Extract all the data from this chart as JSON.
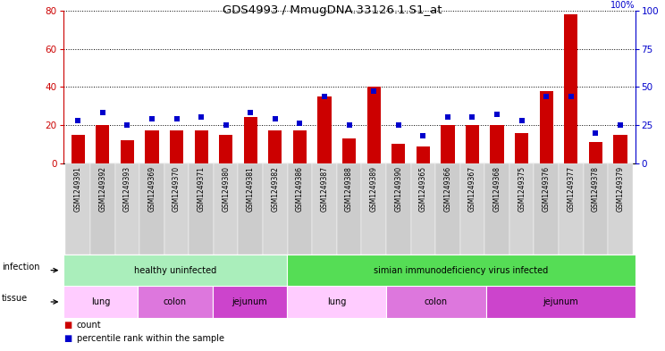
{
  "title": "GDS4993 / MmugDNA.33126.1.S1_at",
  "samples": [
    "GSM1249391",
    "GSM1249392",
    "GSM1249393",
    "GSM1249369",
    "GSM1249370",
    "GSM1249371",
    "GSM1249380",
    "GSM1249381",
    "GSM1249382",
    "GSM1249386",
    "GSM1249387",
    "GSM1249388",
    "GSM1249389",
    "GSM1249390",
    "GSM1249365",
    "GSM1249366",
    "GSM1249367",
    "GSM1249368",
    "GSM1249375",
    "GSM1249376",
    "GSM1249377",
    "GSM1249378",
    "GSM1249379"
  ],
  "counts": [
    15,
    20,
    12,
    17,
    17,
    17,
    15,
    24,
    17,
    17,
    35,
    13,
    40,
    10,
    9,
    20,
    20,
    20,
    16,
    38,
    78,
    11,
    15
  ],
  "percentiles": [
    28,
    33,
    25,
    29,
    29,
    30,
    25,
    33,
    29,
    26,
    44,
    25,
    47,
    25,
    18,
    30,
    30,
    32,
    28,
    44,
    44,
    20,
    25
  ],
  "red_color": "#cc0000",
  "blue_color": "#0000cc",
  "ylim_left": [
    0,
    80
  ],
  "ylim_right": [
    0,
    100
  ],
  "yticks_left": [
    0,
    20,
    40,
    60,
    80
  ],
  "yticks_right": [
    0,
    25,
    50,
    75,
    100
  ],
  "infection_groups": [
    {
      "label": "healthy uninfected",
      "start": 0,
      "end": 9,
      "color": "#aaeebb"
    },
    {
      "label": "simian immunodeficiency virus infected",
      "start": 9,
      "end": 23,
      "color": "#55dd55"
    }
  ],
  "tissue_groups": [
    {
      "label": "lung",
      "start": 0,
      "end": 3,
      "type": "lung"
    },
    {
      "label": "colon",
      "start": 3,
      "end": 6,
      "type": "colon"
    },
    {
      "label": "jejunum",
      "start": 6,
      "end": 9,
      "type": "jejunum"
    },
    {
      "label": "lung",
      "start": 9,
      "end": 13,
      "type": "lung"
    },
    {
      "label": "colon",
      "start": 13,
      "end": 17,
      "type": "colon"
    },
    {
      "label": "jejunum",
      "start": 17,
      "end": 23,
      "type": "jejunum"
    }
  ],
  "tissue_lung_color": "#ffccff",
  "tissue_colon_color": "#dd77dd",
  "tissue_jejunum_color": "#cc44cc"
}
